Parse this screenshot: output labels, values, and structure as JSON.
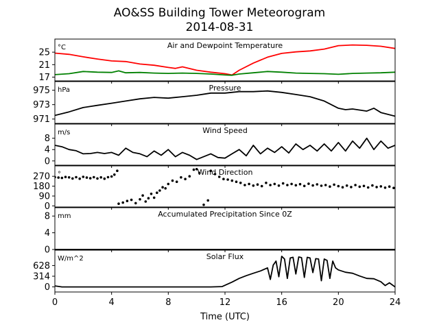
{
  "figure": {
    "title_line1": "AO&SS Building Tower Meteorogram",
    "title_line2": "2014-08-31",
    "xlabel": "Time (UTC)"
  },
  "chart_data": {
    "type": "line",
    "x_axis": {
      "range": [
        0,
        24
      ],
      "ticks": [
        0,
        4,
        8,
        12,
        16,
        20,
        24
      ],
      "tick_labels": [
        "0",
        "4",
        "8",
        "12",
        "16",
        "20",
        "24"
      ]
    },
    "grid": false,
    "panels": [
      {
        "id": "temp",
        "title": "Air and Dewpoint Temperature",
        "unit": "°C",
        "ylim": [
          15.8,
          29.2
        ],
        "yticks": [
          17,
          21,
          25
        ],
        "series": [
          {
            "color": "#ff0000",
            "style": "line",
            "x": [
              0,
              1,
              2,
              3,
              4,
              5,
              6,
              7,
              8,
              8.5,
              9,
              10,
              11,
              12,
              12.5,
              13,
              14,
              15,
              16,
              17,
              18,
              19,
              20,
              21,
              22,
              23,
              24
            ],
            "y": [
              24.7,
              24.3,
              23.5,
              22.8,
              22.2,
              22.0,
              21.2,
              20.8,
              20.1,
              19.8,
              20.3,
              19.2,
              18.6,
              18.1,
              17.7,
              19.2,
              21.5,
              23.4,
              24.6,
              25.1,
              25.4,
              26.0,
              27.1,
              27.3,
              27.2,
              26.9,
              26.2
            ]
          },
          {
            "color": "#008000",
            "style": "line",
            "x": [
              0,
              1,
              2,
              3,
              4,
              4.5,
              5,
              6,
              7,
              8,
              9,
              10,
              11,
              12,
              12.5,
              13,
              14,
              15,
              16,
              17,
              18,
              19,
              20,
              21,
              22,
              23,
              24
            ],
            "y": [
              17.8,
              18.1,
              18.8,
              18.6,
              18.5,
              19.0,
              18.4,
              18.5,
              18.3,
              18.2,
              18.3,
              18.2,
              18.0,
              17.7,
              17.6,
              18.0,
              18.4,
              18.8,
              18.6,
              18.3,
              18.2,
              18.1,
              17.9,
              18.2,
              18.3,
              18.4,
              18.6
            ]
          }
        ]
      },
      {
        "id": "pres",
        "title": "Pressure",
        "unit": "hPa",
        "ylim": [
          970.4,
          976.2
        ],
        "yticks": [
          971,
          973,
          975
        ],
        "series": [
          {
            "color": "#000000",
            "style": "line",
            "x": [
              0,
              1,
              2,
              3,
              4,
              5,
              6,
              7,
              8,
              9,
              10,
              11,
              12,
              13,
              14,
              15,
              16,
              17,
              18,
              19,
              20,
              20.5,
              21,
              22,
              22.5,
              23,
              24
            ],
            "y": [
              971.5,
              972.0,
              972.6,
              972.9,
              973.2,
              973.5,
              973.8,
              974.0,
              973.9,
              974.1,
              974.3,
              974.6,
              974.6,
              974.8,
              974.8,
              974.9,
              974.7,
              974.4,
              974.1,
              973.5,
              972.5,
              972.3,
              972.4,
              972.1,
              972.5,
              971.9,
              971.4
            ]
          }
        ]
      },
      {
        "id": "wspd",
        "title": "Wind Speed",
        "unit": "m/s",
        "ylim": [
          -1.5,
          13
        ],
        "yticks": [
          0,
          4,
          8
        ],
        "series": [
          {
            "color": "#000000",
            "style": "line",
            "x": [
              0,
              0.5,
              1,
              1.5,
              2,
              2.5,
              3,
              3.5,
              4,
              4.5,
              5,
              5.5,
              6,
              6.5,
              7,
              7.5,
              8,
              8.5,
              9,
              9.5,
              10,
              10.5,
              11,
              11.5,
              12,
              12.5,
              13,
              13.5,
              14,
              14.5,
              15,
              15.5,
              16,
              16.5,
              17,
              17.5,
              18,
              18.5,
              19,
              19.5,
              20,
              20.5,
              21,
              21.5,
              22,
              22.5,
              23,
              23.5,
              24
            ],
            "y": [
              5.5,
              5.0,
              4.0,
              3.6,
              2.5,
              2.6,
              3.0,
              2.6,
              3.0,
              2.0,
              4.5,
              3.0,
              2.5,
              1.5,
              3.5,
              2.0,
              4.0,
              1.5,
              3.0,
              2.0,
              0.5,
              1.5,
              2.5,
              1.2,
              1.0,
              2.5,
              4.0,
              1.8,
              5.5,
              2.5,
              4.5,
              3.0,
              5.0,
              2.8,
              6.0,
              4.0,
              5.5,
              3.5,
              6.0,
              3.5,
              6.5,
              3.5,
              7.0,
              4.5,
              8.0,
              4.0,
              7.0,
              4.5,
              5.5
            ]
          }
        ]
      },
      {
        "id": "wdir",
        "title": "Wind Direction",
        "unit": "°",
        "ylim": [
          -10,
          365
        ],
        "yticks": [
          0,
          90,
          180,
          270
        ],
        "series": [
          {
            "color": "#000000",
            "style": "scatter",
            "x": [
              0,
              0.25,
              0.5,
              0.75,
              1,
              1.25,
              1.5,
              1.75,
              2,
              2.25,
              2.5,
              2.75,
              3,
              3.25,
              3.5,
              3.75,
              4,
              4.2,
              4.4,
              4.5,
              4.8,
              5.1,
              5.4,
              5.7,
              6.0,
              6.2,
              6.4,
              6.6,
              6.8,
              7.0,
              7.2,
              7.4,
              7.6,
              7.8,
              8.0,
              8.3,
              8.6,
              8.9,
              9.2,
              9.5,
              9.8,
              10.0,
              10.2,
              10.5,
              10.8,
              11.0,
              11.3,
              11.6,
              11.9,
              12.2,
              12.5,
              12.8,
              13.1,
              13.4,
              13.7,
              14.0,
              14.3,
              14.6,
              14.9,
              15.2,
              15.5,
              15.8,
              16.1,
              16.4,
              16.7,
              17.0,
              17.3,
              17.6,
              17.9,
              18.2,
              18.5,
              18.8,
              19.1,
              19.4,
              19.7,
              20.0,
              20.3,
              20.6,
              20.9,
              21.2,
              21.5,
              21.8,
              22.1,
              22.4,
              22.7,
              23.0,
              23.3,
              23.6,
              23.9
            ],
            "y": [
              262,
              258,
              255,
              264,
              260,
              250,
              262,
              248,
              265,
              258,
              252,
              262,
              250,
              260,
              248,
              262,
              268,
              285,
              320,
              20,
              30,
              45,
              55,
              25,
              60,
              95,
              40,
              70,
              110,
              75,
              120,
              140,
              170,
              160,
              200,
              230,
              220,
              260,
              245,
              270,
              330,
              335,
              300,
              10,
              50,
              320,
              290,
              265,
              245,
              240,
              230,
              220,
              210,
              190,
              200,
              185,
              195,
              180,
              210,
              190,
              200,
              185,
              205,
              190,
              200,
              188,
              198,
              182,
              202,
              186,
              196,
              184,
              190,
              176,
              194,
              180,
              170,
              185,
              172,
              190,
              175,
              182,
              168,
              186,
              172,
              178,
              166,
              176,
              164
            ]
          }
        ]
      },
      {
        "id": "precip",
        "title": "Accumulated Precipitation Since 0Z",
        "unit": "mm",
        "ylim": [
          0,
          10
        ],
        "yticks": [
          0,
          4,
          8
        ],
        "series": [
          {
            "color": "#000000",
            "style": "line",
            "x": [
              0,
              24
            ],
            "y": [
              0,
              0
            ]
          }
        ]
      },
      {
        "id": "solar",
        "title": "Solar Flux",
        "unit": "W/m^2",
        "ylim": [
          -150,
          1080
        ],
        "yticks": [
          0,
          314,
          628
        ],
        "tick_labels": [
          "0",
          "314",
          "628"
        ],
        "series": [
          {
            "color": "#000000",
            "style": "line",
            "x": [
              0,
              0.5,
              11,
              11.8,
              12.5,
              13,
              13.5,
              14,
              14.5,
              15,
              15.2,
              15.4,
              15.6,
              15.8,
              16.0,
              16.2,
              16.4,
              16.6,
              16.8,
              17.0,
              17.2,
              17.4,
              17.6,
              17.8,
              18.0,
              18.2,
              18.4,
              18.6,
              18.8,
              19.0,
              19.2,
              19.4,
              19.6,
              19.8,
              20.0,
              20.5,
              21,
              21.5,
              22,
              22.5,
              23,
              23.3,
              23.6,
              24
            ],
            "y": [
              30,
              0,
              0,
              10,
              140,
              250,
              330,
              400,
              470,
              560,
              220,
              640,
              760,
              300,
              900,
              820,
              250,
              850,
              870,
              380,
              880,
              860,
              280,
              870,
              850,
              420,
              830,
              820,
              180,
              820,
              780,
              250,
              760,
              560,
              500,
              430,
              400,
              320,
              250,
              240,
              150,
              40,
              120,
              0
            ]
          }
        ]
      }
    ]
  }
}
